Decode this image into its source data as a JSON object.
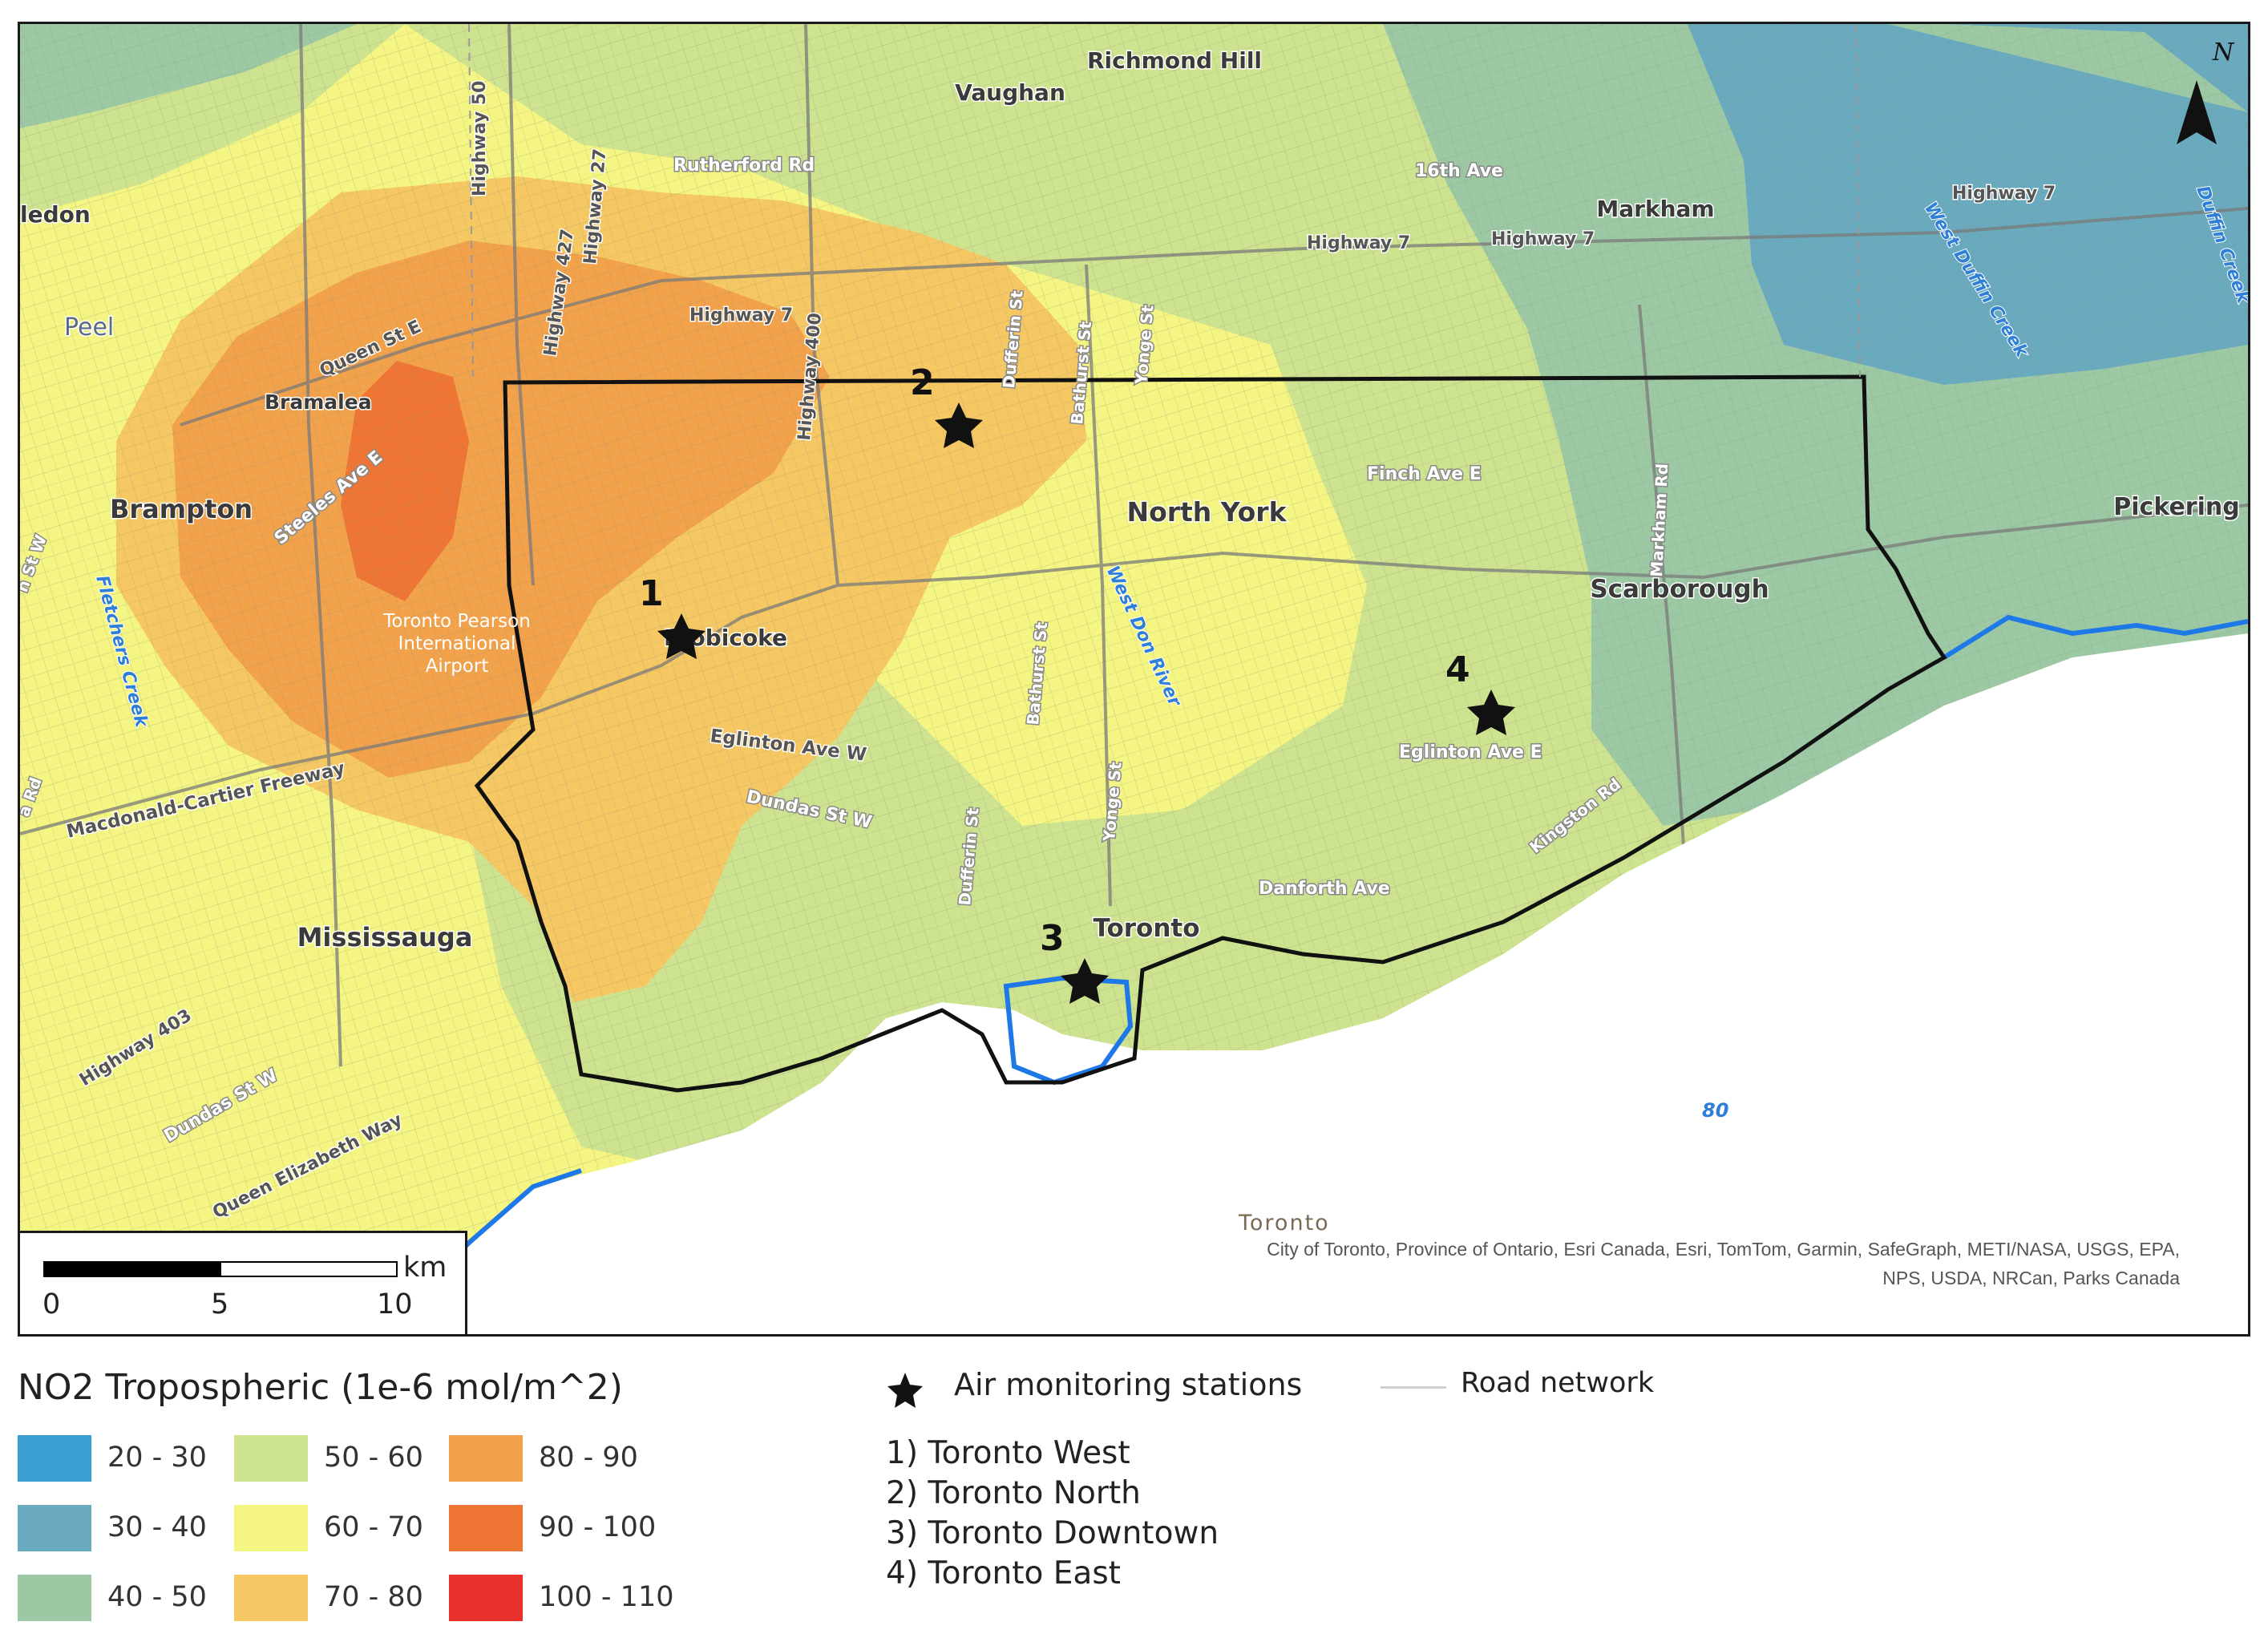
{
  "map": {
    "places": {
      "richmond_hill": "Richmond Hill",
      "vaughan": "Vaughan",
      "markham": "Markham",
      "caledon": "ledon",
      "peel": "Peel",
      "bramalea": "Bramalea",
      "brampton": "Brampton",
      "north_york": "North York",
      "pickering": "Pickering",
      "scarborough": "Scarborough",
      "etobicoke": "Etobicoke",
      "mississauga": "Mississauga",
      "toronto": "Toronto",
      "airport": [
        "Toronto Pearson",
        "International",
        "Airport"
      ]
    },
    "roads": {
      "highway50": "Highway 50",
      "highway427": "Highway 427",
      "highway27": "Highway 27",
      "highway400": "Highway 400",
      "highway7_a": "Highway 7",
      "highway7_b": "Highway 7",
      "highway7_c": "Highway 7",
      "highway7_d": "Highway 7",
      "rutherford": "Rutherford Rd",
      "sixteenth": "16th Ave",
      "queen_st_e": "Queen St E",
      "steeles": "Steeles Ave E",
      "dufferin_n": "Dufferin St",
      "bathurst_n": "Bathurst St",
      "yonge_n": "Yonge St",
      "finch": "Finch Ave E",
      "markham_rd": "Markham Rd",
      "eglinton_w": "Eglinton Ave W",
      "eglinton_e": "Eglinton Ave E",
      "dundas_w": "Dundas St W",
      "macdonald": "Macdonald-Cartier Freeway",
      "bathurst_s": "Bathurst St",
      "dufferin_s": "Dufferin St",
      "yonge_s": "Yonge St",
      "kingston": "Kingston Rd",
      "danforth": "Danforth Ave",
      "highway403": "Highway 403",
      "dundas_st_w_sw": "Dundas St W",
      "qew": "Queen Elizabeth Way",
      "st_w": "n St W",
      "rd_fragment": "a Rd"
    },
    "water_labels": {
      "west_duffin": "West Duffin Creek",
      "duffin": "Duffin Creek",
      "west_don": "West Don River",
      "fletchers": "Fletchers Creek",
      "lake_num": "80"
    },
    "north": "N",
    "stations": [
      {
        "num": "1"
      },
      {
        "num": "2"
      },
      {
        "num": "3"
      },
      {
        "num": "4"
      }
    ],
    "scalebar": {
      "ticks": [
        "0",
        "5",
        "10"
      ],
      "unit": "km"
    },
    "credits_place": "Toronto",
    "credits": [
      "City of Toronto, Province of Ontario, Esri Canada, Esri, TomTom, Garmin, SafeGraph, METI/NASA, USGS, EPA,",
      "NPS, USDA, NRCan, Parks Canada"
    ]
  },
  "legend": {
    "title": "NO2 Tropospheric (1e-6 mol/m^2)",
    "classes": [
      {
        "label": "20 - 30",
        "color": "#3a9fd0"
      },
      {
        "label": "30 - 40",
        "color": "#6aaabf"
      },
      {
        "label": "40 - 50",
        "color": "#9cc9a4"
      },
      {
        "label": "50 - 60",
        "color": "#cde38f"
      },
      {
        "label": "60 - 70",
        "color": "#f4f582"
      },
      {
        "label": "70 - 80",
        "color": "#f6c863"
      },
      {
        "label": "80 - 90",
        "color": "#f2a24a"
      },
      {
        "label": "90 - 100",
        "color": "#ef7534"
      },
      {
        "label": "100 - 110",
        "color": "#e8312a"
      }
    ],
    "stations_title": "Air monitoring stations",
    "station_list": [
      "1) Toronto West",
      "2) Toronto North",
      "3) Toronto Downtown",
      "4) Toronto East"
    ],
    "road_network": "Road network"
  }
}
